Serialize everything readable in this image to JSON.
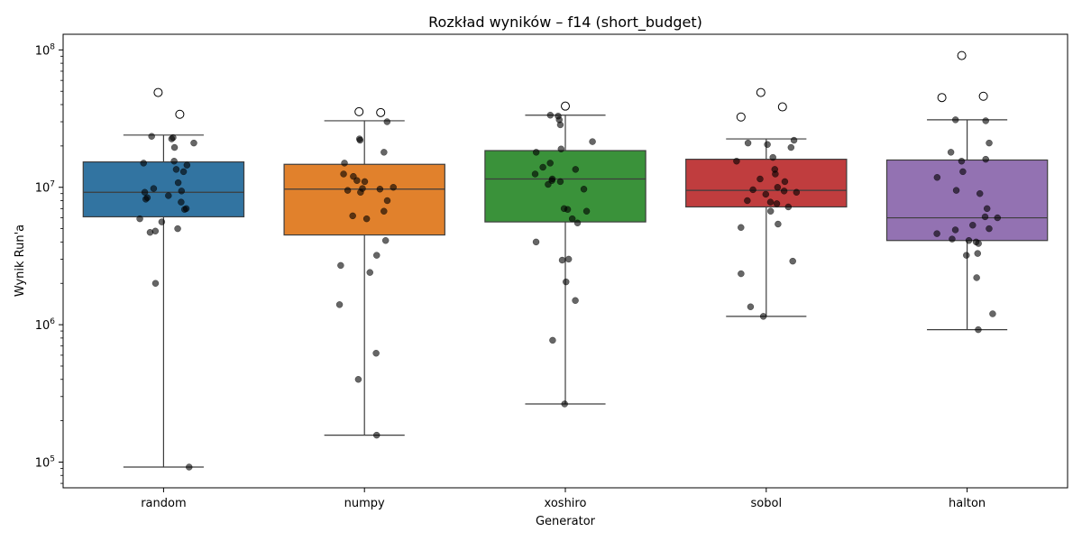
{
  "chart_data": {
    "type": "box",
    "title": "Rozkład wyników – f14 (short_budget)",
    "xlabel": "Generator",
    "ylabel": "Wynik Run'a",
    "yscale": "log",
    "ylim": [
      65000,
      130000000
    ],
    "y_ticks": [
      {
        "value": 100000,
        "base": "10",
        "exp": "5"
      },
      {
        "value": 1000000,
        "base": "10",
        "exp": "6"
      },
      {
        "value": 10000000,
        "base": "10",
        "exp": "7"
      },
      {
        "value": 100000000,
        "base": "10",
        "exp": "8"
      }
    ],
    "grid": false,
    "legend": "none",
    "categories": [
      "random",
      "numpy",
      "xoshiro",
      "sobol",
      "halton"
    ],
    "colors": [
      "#3274a1",
      "#e1812c",
      "#3a923a",
      "#c03d3e",
      "#9372b2"
    ],
    "boxes": [
      {
        "name": "random",
        "whisker_low": 92000,
        "q1": 6100000,
        "median": 9200000,
        "q3": 15300000,
        "whisker_high": 24000000,
        "outliers": [
          49000000,
          34000000
        ],
        "points": [
          23000000,
          23500000,
          22500000,
          21000000,
          19500000,
          15500000,
          15000000,
          14500000,
          13500000,
          13000000,
          10800000,
          9800000,
          9400000,
          9200000,
          8700000,
          8400000,
          8200000,
          7800000,
          7000000,
          6900000,
          5900000,
          5600000,
          5000000,
          4800000,
          4700000,
          2000000,
          92000
        ]
      },
      {
        "name": "numpy",
        "whisker_low": 157000,
        "q1": 4500000,
        "median": 9700000,
        "q3": 14700000,
        "whisker_high": 30500000,
        "outliers": [
          35500000,
          35000000
        ],
        "points": [
          30000000,
          22500000,
          22000000,
          18000000,
          15000000,
          12500000,
          12000000,
          11200000,
          11000000,
          10000000,
          9800000,
          9700000,
          9500000,
          9200000,
          8000000,
          6700000,
          6200000,
          5900000,
          4100000,
          3200000,
          2700000,
          2400000,
          1400000,
          620000,
          400000,
          157000
        ]
      },
      {
        "name": "xoshiro",
        "whisker_low": 265000,
        "q1": 5600000,
        "median": 11500000,
        "q3": 18500000,
        "whisker_high": 33500000,
        "outliers": [
          39000000
        ],
        "points": [
          33500000,
          33000000,
          31000000,
          28500000,
          21500000,
          19000000,
          18000000,
          15000000,
          14000000,
          13500000,
          12500000,
          11500000,
          11200000,
          11000000,
          10500000,
          9700000,
          7000000,
          6900000,
          6700000,
          5900000,
          5500000,
          4000000,
          3000000,
          2950000,
          2050000,
          1500000,
          770000,
          265000
        ]
      },
      {
        "name": "sobol",
        "whisker_low": 1150000,
        "q1": 7200000,
        "median": 9500000,
        "q3": 16000000,
        "whisker_high": 22500000,
        "outliers": [
          49000000,
          38500000,
          32500000
        ],
        "points": [
          22000000,
          21000000,
          20500000,
          19500000,
          16500000,
          15500000,
          13500000,
          12500000,
          11500000,
          11000000,
          10000000,
          9600000,
          9400000,
          9200000,
          8900000,
          8000000,
          7800000,
          7600000,
          7200000,
          6700000,
          5400000,
          5100000,
          2900000,
          2350000,
          1350000,
          1150000
        ]
      },
      {
        "name": "halton",
        "whisker_low": 920000,
        "q1": 4100000,
        "median": 6000000,
        "q3": 15800000,
        "whisker_high": 31000000,
        "outliers": [
          91000000,
          46000000,
          45000000
        ],
        "points": [
          30500000,
          31000000,
          21000000,
          18000000,
          16000000,
          15500000,
          13000000,
          11800000,
          9500000,
          9000000,
          7000000,
          6100000,
          6000000,
          5300000,
          5000000,
          4900000,
          4600000,
          4200000,
          4100000,
          4000000,
          3900000,
          3300000,
          3200000,
          2200000,
          1200000,
          920000
        ]
      }
    ]
  }
}
